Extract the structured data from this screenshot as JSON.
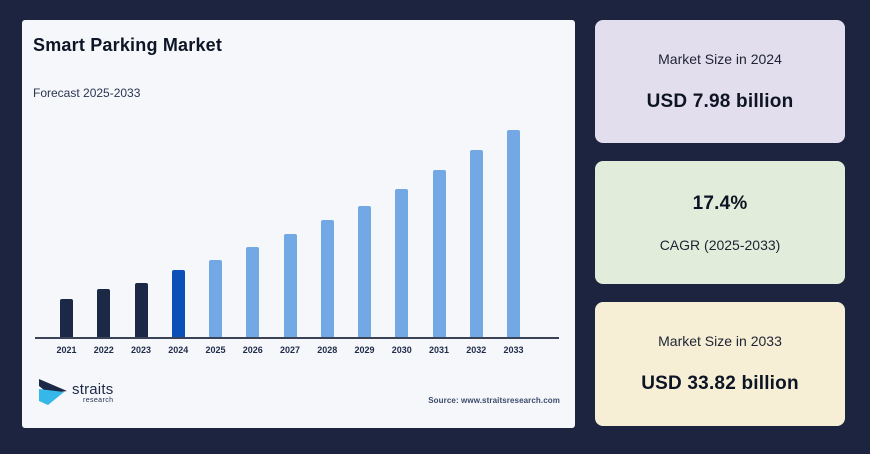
{
  "page": {
    "background": "#1c2440",
    "panel_background": "#f5f7fb"
  },
  "header": {
    "title": "Smart Parking Market",
    "subtitle": "Forecast 2025-2033"
  },
  "footer": {
    "logo_text": "straits",
    "logo_subtext": "research",
    "logo_colors": {
      "dark": "#1b2947",
      "cyan": "#35b7e9"
    },
    "source": "Source: www.straitsresearch.com"
  },
  "stat_cards": [
    {
      "label": "Market Size in 2024",
      "value": "USD 7.98 billion",
      "background": "#e3deee",
      "layout": "label-top"
    },
    {
      "label": "CAGR (2025-2033)",
      "value": "17.4%",
      "background": "#e1edda",
      "layout": "value-top"
    },
    {
      "label": "Market Size in 2033",
      "value": "USD 33.82 billion",
      "background": "#f6efd6",
      "layout": "label-top"
    }
  ],
  "chart_data": {
    "type": "bar",
    "title": "Smart Parking Market",
    "subtitle": "Forecast 2025-2033",
    "unit": "USD billion",
    "categories": [
      "2021",
      "2022",
      "2023",
      "2024",
      "2025",
      "2026",
      "2027",
      "2028",
      "2029",
      "2030",
      "2031",
      "2032",
      "2033"
    ],
    "values_usd_billion": [
      4.93,
      5.79,
      6.8,
      7.98,
      9.37,
      11.0,
      12.91,
      15.16,
      17.8,
      20.89,
      24.53,
      28.8,
      33.82
    ],
    "bar_height_pct_of_max": [
      18.5,
      23.3,
      26.2,
      32.2,
      37.0,
      43.5,
      49.8,
      56.4,
      63.5,
      71.6,
      80.5,
      90.2,
      100
    ],
    "bar_roles": [
      "historical",
      "historical",
      "historical",
      "current",
      "forecast",
      "forecast",
      "forecast",
      "forecast",
      "forecast",
      "forecast",
      "forecast",
      "forecast",
      "forecast"
    ],
    "colors": {
      "historical": "#1b2947",
      "current": "#0b50b8",
      "forecast": "#72a9e5"
    },
    "ylim": [
      0,
      35
    ],
    "grid": false,
    "legend": false,
    "x_axis_line": true,
    "annotations": {
      "market_size_2024_usd_billion": 7.98,
      "market_size_2033_usd_billion": 33.82,
      "cagr_2025_2033_percent": 17.4
    }
  }
}
